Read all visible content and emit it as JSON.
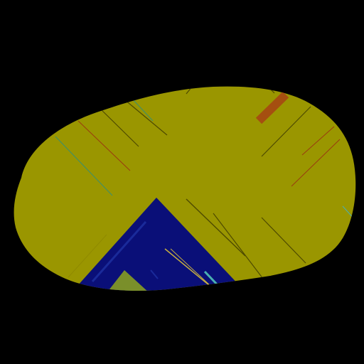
{
  "scene": {
    "background_color": "#000000",
    "blob_color": "#9a9600",
    "blob_edge_color": "#8f8a00",
    "triangle_color": "#0a0f78",
    "triangle_inner_color": "#0e1a8a",
    "triangle_tip_color": "#7a8f2a",
    "accent_orange": "#a54f10",
    "streak_colors": {
      "dark": "#4e4a00",
      "teal": "#3a8f6f",
      "red": "#9a3a10",
      "gold": "#c8b040",
      "cyan": "#4ab0b0"
    }
  }
}
